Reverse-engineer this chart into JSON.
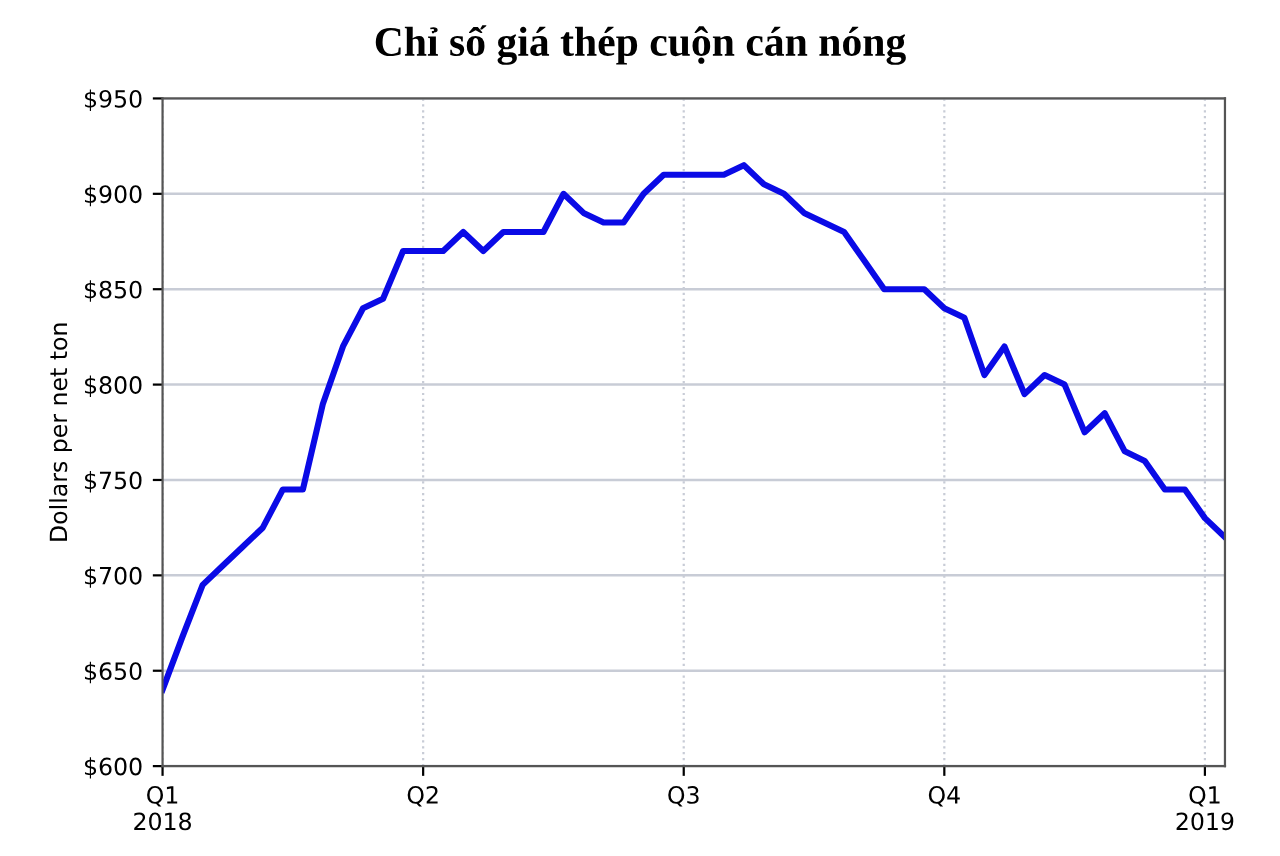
{
  "chart_data": {
    "type": "line",
    "title": "Chỉ số giá thép cuộn cán nóng",
    "ylabel": "Dollars per net ton",
    "categories": [
      "Q1\n2018",
      null,
      null,
      null,
      null,
      null,
      null,
      null,
      null,
      null,
      null,
      null,
      null,
      "Q2",
      null,
      null,
      null,
      null,
      null,
      null,
      null,
      null,
      null,
      null,
      null,
      null,
      "Q3",
      null,
      null,
      null,
      null,
      null,
      null,
      null,
      null,
      null,
      null,
      null,
      null,
      "Q4",
      null,
      null,
      null,
      null,
      null,
      null,
      null,
      null,
      null,
      null,
      null,
      null,
      "Q1\n2019",
      null
    ],
    "series": [
      {
        "color": "#0a0ae6",
        "values": [
          640,
          668,
          695,
          705,
          715,
          725,
          745,
          745,
          790,
          820,
          840,
          845,
          870,
          870,
          870,
          880,
          870,
          880,
          880,
          880,
          900,
          890,
          885,
          885,
          900,
          910,
          910,
          910,
          910,
          915,
          905,
          900,
          890,
          885,
          880,
          865,
          850,
          850,
          850,
          840,
          835,
          805,
          820,
          795,
          805,
          800,
          775,
          785,
          765,
          760,
          745,
          745,
          730,
          720
        ]
      }
    ],
    "ylim": [
      600,
      950
    ],
    "yticks": [
      {
        "value": 600,
        "label": "$600"
      },
      {
        "value": 650,
        "label": "$650"
      },
      {
        "value": 700,
        "label": "$700"
      },
      {
        "value": 750,
        "label": "$750"
      },
      {
        "value": 800,
        "label": "$800"
      },
      {
        "value": 850,
        "label": "$850"
      },
      {
        "value": 900,
        "label": "$900"
      },
      {
        "value": 950,
        "label": "$950"
      }
    ],
    "grid": true,
    "legend": false,
    "marker": "none",
    "line_style": "solid"
  }
}
